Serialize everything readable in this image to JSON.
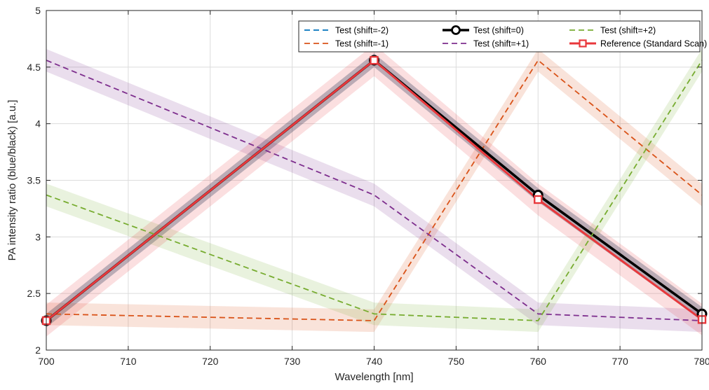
{
  "chart_data": {
    "type": "line",
    "xlabel": "Wavelength [nm]",
    "ylabel": "PA intensity ratio (blue/black) [a.u.]",
    "xlim": [
      700,
      780
    ],
    "ylim": [
      2,
      5
    ],
    "xticks": [
      700,
      710,
      720,
      730,
      740,
      750,
      760,
      770,
      780
    ],
    "yticks": [
      2,
      2.5,
      3,
      3.5,
      4,
      4.5,
      5
    ],
    "ytick_labels": [
      "2",
      "2.5",
      "3",
      "3.5",
      "4",
      "4.5",
      "5"
    ],
    "grid": true,
    "legend_position": "top-right",
    "legend_columns": 3,
    "x": [
      700,
      740,
      760,
      780
    ],
    "series": [
      {
        "name": "Test (shift=-2)",
        "values": [
          2.26,
          4.56,
          3.37,
          2.32
        ],
        "color": "#0072BD",
        "style": "dashed",
        "band": 0.06
      },
      {
        "name": "Test (shift=-1)",
        "values": [
          2.32,
          2.26,
          4.56,
          3.37
        ],
        "color": "#D95319",
        "style": "dashed",
        "band": 0.1
      },
      {
        "name": "Test (shift=0)",
        "values": [
          2.26,
          4.56,
          3.37,
          2.32
        ],
        "color": "#000000",
        "style": "solid",
        "marker": "circle",
        "band": 0.06
      },
      {
        "name": "Test (shift=+1)",
        "values": [
          4.56,
          3.37,
          2.32,
          2.26
        ],
        "color": "#7E2F8E",
        "style": "dashed",
        "band": 0.1
      },
      {
        "name": "Test (shift=+2)",
        "values": [
          3.37,
          2.32,
          2.26,
          4.56
        ],
        "color": "#77AC30",
        "style": "dashed",
        "band": 0.1
      },
      {
        "name": "Reference (Standard Scan)",
        "values": [
          2.26,
          4.56,
          3.33,
          2.27
        ],
        "color": "#E8383C",
        "style": "solid",
        "marker": "square",
        "band": 0.14
      }
    ],
    "legend_order": [
      [
        "Test (shift=-2)",
        "Test (shift=0)",
        "Test (shift=+2)"
      ],
      [
        "Test (shift=-1)",
        "Test (shift=+1)",
        "Reference (Standard Scan)"
      ]
    ]
  }
}
